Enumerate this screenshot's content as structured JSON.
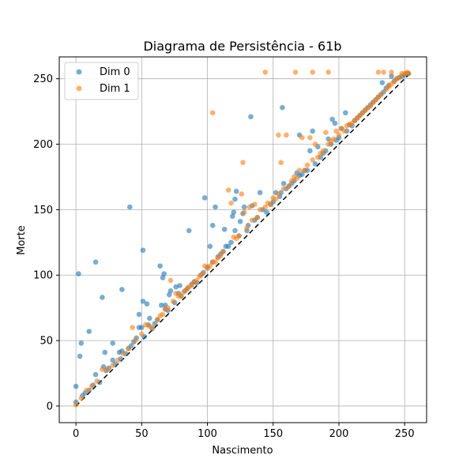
{
  "colors": {
    "dim0": "#1f77b4",
    "dim1": "#ff7f0e",
    "grid": "#b0b0b0",
    "diagonal": "#000000"
  },
  "chart_data": {
    "type": "scatter",
    "title": "Diagrama de Persistência - 61b",
    "xlabel": "Nascimento",
    "ylabel": "Morte",
    "xlim": [
      -12.7,
      266.7
    ],
    "ylim": [
      -12.7,
      266.7
    ],
    "xticks": [
      0,
      50,
      100,
      150,
      200,
      250
    ],
    "yticks": [
      0,
      50,
      100,
      150,
      200,
      250
    ],
    "grid": true,
    "legend_position": "top-left",
    "diagonal": {
      "style": "dashed",
      "from": [
        0,
        0
      ],
      "to": [
        254,
        254
      ]
    },
    "series": [
      {
        "name": "Dim 0",
        "points": [
          [
            0,
            15
          ],
          [
            0,
            3
          ],
          [
            2,
            101
          ],
          [
            3,
            38
          ],
          [
            4,
            48
          ],
          [
            5,
            8
          ],
          [
            7,
            10
          ],
          [
            10,
            57
          ],
          [
            10,
            12
          ],
          [
            13,
            16
          ],
          [
            15,
            110
          ],
          [
            15,
            24
          ],
          [
            18,
            18
          ],
          [
            20,
            83
          ],
          [
            21,
            30
          ],
          [
            22,
            41
          ],
          [
            23,
            27
          ],
          [
            25,
            29
          ],
          [
            28,
            48
          ],
          [
            28,
            35
          ],
          [
            30,
            32
          ],
          [
            33,
            41
          ],
          [
            34,
            36
          ],
          [
            35,
            89
          ],
          [
            35,
            42
          ],
          [
            38,
            40
          ],
          [
            40,
            44
          ],
          [
            41,
            152
          ],
          [
            42,
            46
          ],
          [
            44,
            49
          ],
          [
            46,
            52
          ],
          [
            48,
            60
          ],
          [
            48,
            70
          ],
          [
            50,
            60
          ],
          [
            51,
            80
          ],
          [
            51,
            119
          ],
          [
            52,
            53
          ],
          [
            54,
            78
          ],
          [
            55,
            62
          ],
          [
            56,
            67
          ],
          [
            58,
            59
          ],
          [
            60,
            63
          ],
          [
            62,
            66
          ],
          [
            64,
            107
          ],
          [
            65,
            77
          ],
          [
            66,
            98
          ],
          [
            67,
            101
          ],
          [
            68,
            74
          ],
          [
            68,
            77
          ],
          [
            70,
            73
          ],
          [
            71,
            85
          ],
          [
            72,
            88
          ],
          [
            75,
            79
          ],
          [
            76,
            91
          ],
          [
            78,
            86
          ],
          [
            79,
            92
          ],
          [
            80,
            84
          ],
          [
            83,
            88
          ],
          [
            85,
            90
          ],
          [
            86,
            134
          ],
          [
            88,
            93
          ],
          [
            90,
            95
          ],
          [
            92,
            94
          ],
          [
            95,
            100
          ],
          [
            97,
            102
          ],
          [
            98,
            159
          ],
          [
            100,
            106
          ],
          [
            102,
            122
          ],
          [
            104,
            110
          ],
          [
            104,
            138
          ],
          [
            106,
            152
          ],
          [
            108,
            114
          ],
          [
            110,
            116
          ],
          [
            112,
            118
          ],
          [
            113,
            135
          ],
          [
            114,
            122
          ],
          [
            116,
            122
          ],
          [
            118,
            125
          ],
          [
            119,
            145
          ],
          [
            120,
            148
          ],
          [
            121,
            134
          ],
          [
            121,
            158
          ],
          [
            122,
            164
          ],
          [
            124,
            130
          ],
          [
            125,
            141
          ],
          [
            127,
            147
          ],
          [
            128,
            152
          ],
          [
            130,
            134
          ],
          [
            131,
            138
          ],
          [
            133,
            221
          ],
          [
            134,
            153
          ],
          [
            136,
            142
          ],
          [
            138,
            144
          ],
          [
            140,
            163
          ],
          [
            142,
            150
          ],
          [
            145,
            148
          ],
          [
            148,
            154
          ],
          [
            150,
            156
          ],
          [
            152,
            163
          ],
          [
            155,
            160
          ],
          [
            156,
            163
          ],
          [
            157,
            228
          ],
          [
            158,
            170
          ],
          [
            160,
            166
          ],
          [
            162,
            168
          ],
          [
            164,
            170
          ],
          [
            166,
            172
          ],
          [
            168,
            178
          ],
          [
            170,
            207
          ],
          [
            170,
            176
          ],
          [
            172,
            177
          ],
          [
            174,
            180
          ],
          [
            176,
            180
          ],
          [
            178,
            195
          ],
          [
            180,
            210
          ],
          [
            182,
            185
          ],
          [
            184,
            198
          ],
          [
            186,
            190
          ],
          [
            188,
            193
          ],
          [
            190,
            195
          ],
          [
            192,
            204
          ],
          [
            194,
            200
          ],
          [
            195,
            219
          ],
          [
            197,
            216
          ],
          [
            198,
            203
          ],
          [
            200,
            205
          ],
          [
            202,
            212
          ],
          [
            205,
            224
          ],
          [
            206,
            210
          ],
          [
            208,
            215
          ],
          [
            210,
            214
          ],
          [
            212,
            218
          ],
          [
            214,
            220
          ],
          [
            216,
            222
          ],
          [
            218,
            224
          ],
          [
            220,
            226
          ],
          [
            222,
            228
          ],
          [
            224,
            230
          ],
          [
            226,
            232
          ],
          [
            228,
            234
          ],
          [
            230,
            236
          ],
          [
            232,
            238
          ],
          [
            233,
            247
          ],
          [
            234,
            240
          ],
          [
            236,
            243
          ],
          [
            238,
            245
          ],
          [
            240,
            252
          ],
          [
            242,
            248
          ],
          [
            244,
            250
          ],
          [
            246,
            251
          ],
          [
            248,
            252
          ],
          [
            250,
            253
          ],
          [
            252,
            254
          ],
          [
            253,
            254
          ]
        ]
      },
      {
        "name": "Dim 1",
        "points": [
          [
            0,
            1
          ],
          [
            4,
            6
          ],
          [
            8,
            12
          ],
          [
            12,
            15
          ],
          [
            16,
            19
          ],
          [
            20,
            28
          ],
          [
            24,
            28
          ],
          [
            28,
            31
          ],
          [
            32,
            35
          ],
          [
            36,
            40
          ],
          [
            40,
            44
          ],
          [
            43,
            60
          ],
          [
            45,
            50
          ],
          [
            50,
            55
          ],
          [
            53,
            62
          ],
          [
            56,
            61
          ],
          [
            58,
            60
          ],
          [
            62,
            66
          ],
          [
            64,
            69
          ],
          [
            66,
            70
          ],
          [
            68,
            74
          ],
          [
            70,
            75
          ],
          [
            72,
            96
          ],
          [
            74,
            80
          ],
          [
            76,
            86
          ],
          [
            78,
            84
          ],
          [
            80,
            84
          ],
          [
            82,
            87
          ],
          [
            84,
            89
          ],
          [
            86,
            91
          ],
          [
            88,
            92
          ],
          [
            90,
            95
          ],
          [
            92,
            96
          ],
          [
            94,
            99
          ],
          [
            96,
            101
          ],
          [
            98,
            107
          ],
          [
            100,
            105
          ],
          [
            102,
            107
          ],
          [
            104,
            224
          ],
          [
            104,
            110
          ],
          [
            106,
            110
          ],
          [
            108,
            113
          ],
          [
            110,
            115
          ],
          [
            112,
            118
          ],
          [
            116,
            165
          ],
          [
            118,
            155
          ],
          [
            120,
            129
          ],
          [
            122,
            128
          ],
          [
            124,
            130
          ],
          [
            126,
            162
          ],
          [
            127,
            186
          ],
          [
            128,
            148
          ],
          [
            130,
            136
          ],
          [
            132,
            152
          ],
          [
            134,
            142
          ],
          [
            136,
            154
          ],
          [
            138,
            144
          ],
          [
            140,
            150
          ],
          [
            144,
            255
          ],
          [
            144,
            152
          ],
          [
            146,
            155
          ],
          [
            148,
            154
          ],
          [
            150,
            159
          ],
          [
            152,
            158
          ],
          [
            154,
            207
          ],
          [
            154,
            162
          ],
          [
            156,
            186
          ],
          [
            158,
            166
          ],
          [
            160,
            207
          ],
          [
            162,
            168
          ],
          [
            164,
            172
          ],
          [
            166,
            175
          ],
          [
            167,
            255
          ],
          [
            168,
            174
          ],
          [
            170,
            180
          ],
          [
            172,
            205
          ],
          [
            174,
            180
          ],
          [
            176,
            184
          ],
          [
            178,
            205
          ],
          [
            180,
            255
          ],
          [
            180,
            188
          ],
          [
            182,
            200
          ],
          [
            184,
            190
          ],
          [
            186,
            193
          ],
          [
            188,
            195
          ],
          [
            190,
            209
          ],
          [
            192,
            255
          ],
          [
            192,
            200
          ],
          [
            194,
            202
          ],
          [
            196,
            204
          ],
          [
            198,
            210
          ],
          [
            200,
            207
          ],
          [
            202,
            212
          ],
          [
            204,
            210
          ],
          [
            206,
            214
          ],
          [
            208,
            215
          ],
          [
            210,
            216
          ],
          [
            212,
            218
          ],
          [
            214,
            220
          ],
          [
            216,
            222
          ],
          [
            218,
            224
          ],
          [
            220,
            226
          ],
          [
            222,
            228
          ],
          [
            224,
            229
          ],
          [
            226,
            232
          ],
          [
            228,
            234
          ],
          [
            230,
            255
          ],
          [
            230,
            236
          ],
          [
            232,
            238
          ],
          [
            234,
            255
          ],
          [
            236,
            242
          ],
          [
            238,
            244
          ],
          [
            240,
            255
          ],
          [
            240,
            246
          ],
          [
            242,
            248
          ],
          [
            244,
            250
          ],
          [
            246,
            251
          ],
          [
            248,
            254
          ],
          [
            250,
            254
          ],
          [
            252,
            255
          ],
          [
            253,
            254
          ]
        ]
      }
    ]
  }
}
